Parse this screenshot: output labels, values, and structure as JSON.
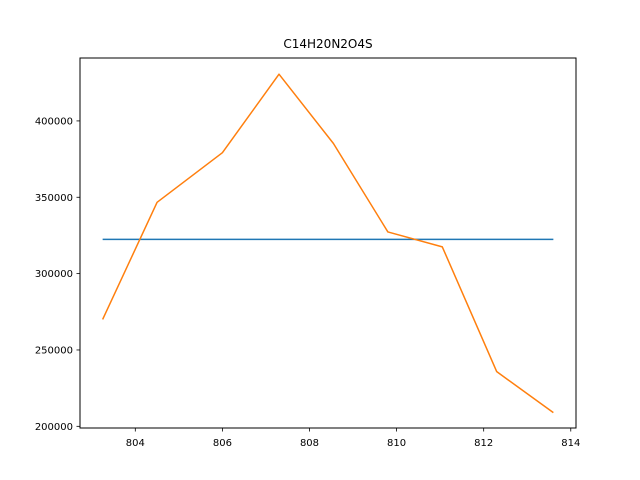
{
  "chart_data": {
    "type": "line",
    "title": "C14H20N2O4S",
    "xlabel": "",
    "ylabel": "",
    "xlim": [
      802.73,
      814.12
    ],
    "ylim": [
      198900,
      441200
    ],
    "grid": false,
    "xticks": [
      804,
      806,
      808,
      810,
      812,
      814
    ],
    "yticks": [
      200000,
      250000,
      300000,
      350000,
      400000
    ],
    "series": [
      {
        "color": "#1f77b4",
        "x": [
          803.25,
          813.6
        ],
        "y": [
          322400,
          322400
        ]
      },
      {
        "color": "#ff7f0e",
        "x": [
          803.25,
          804.5,
          806.0,
          807.3,
          808.55,
          809.8,
          811.05,
          812.3,
          813.6
        ],
        "y": [
          270000,
          346700,
          379200,
          430600,
          385200,
          327300,
          317500,
          235800,
          209000
        ]
      }
    ]
  }
}
